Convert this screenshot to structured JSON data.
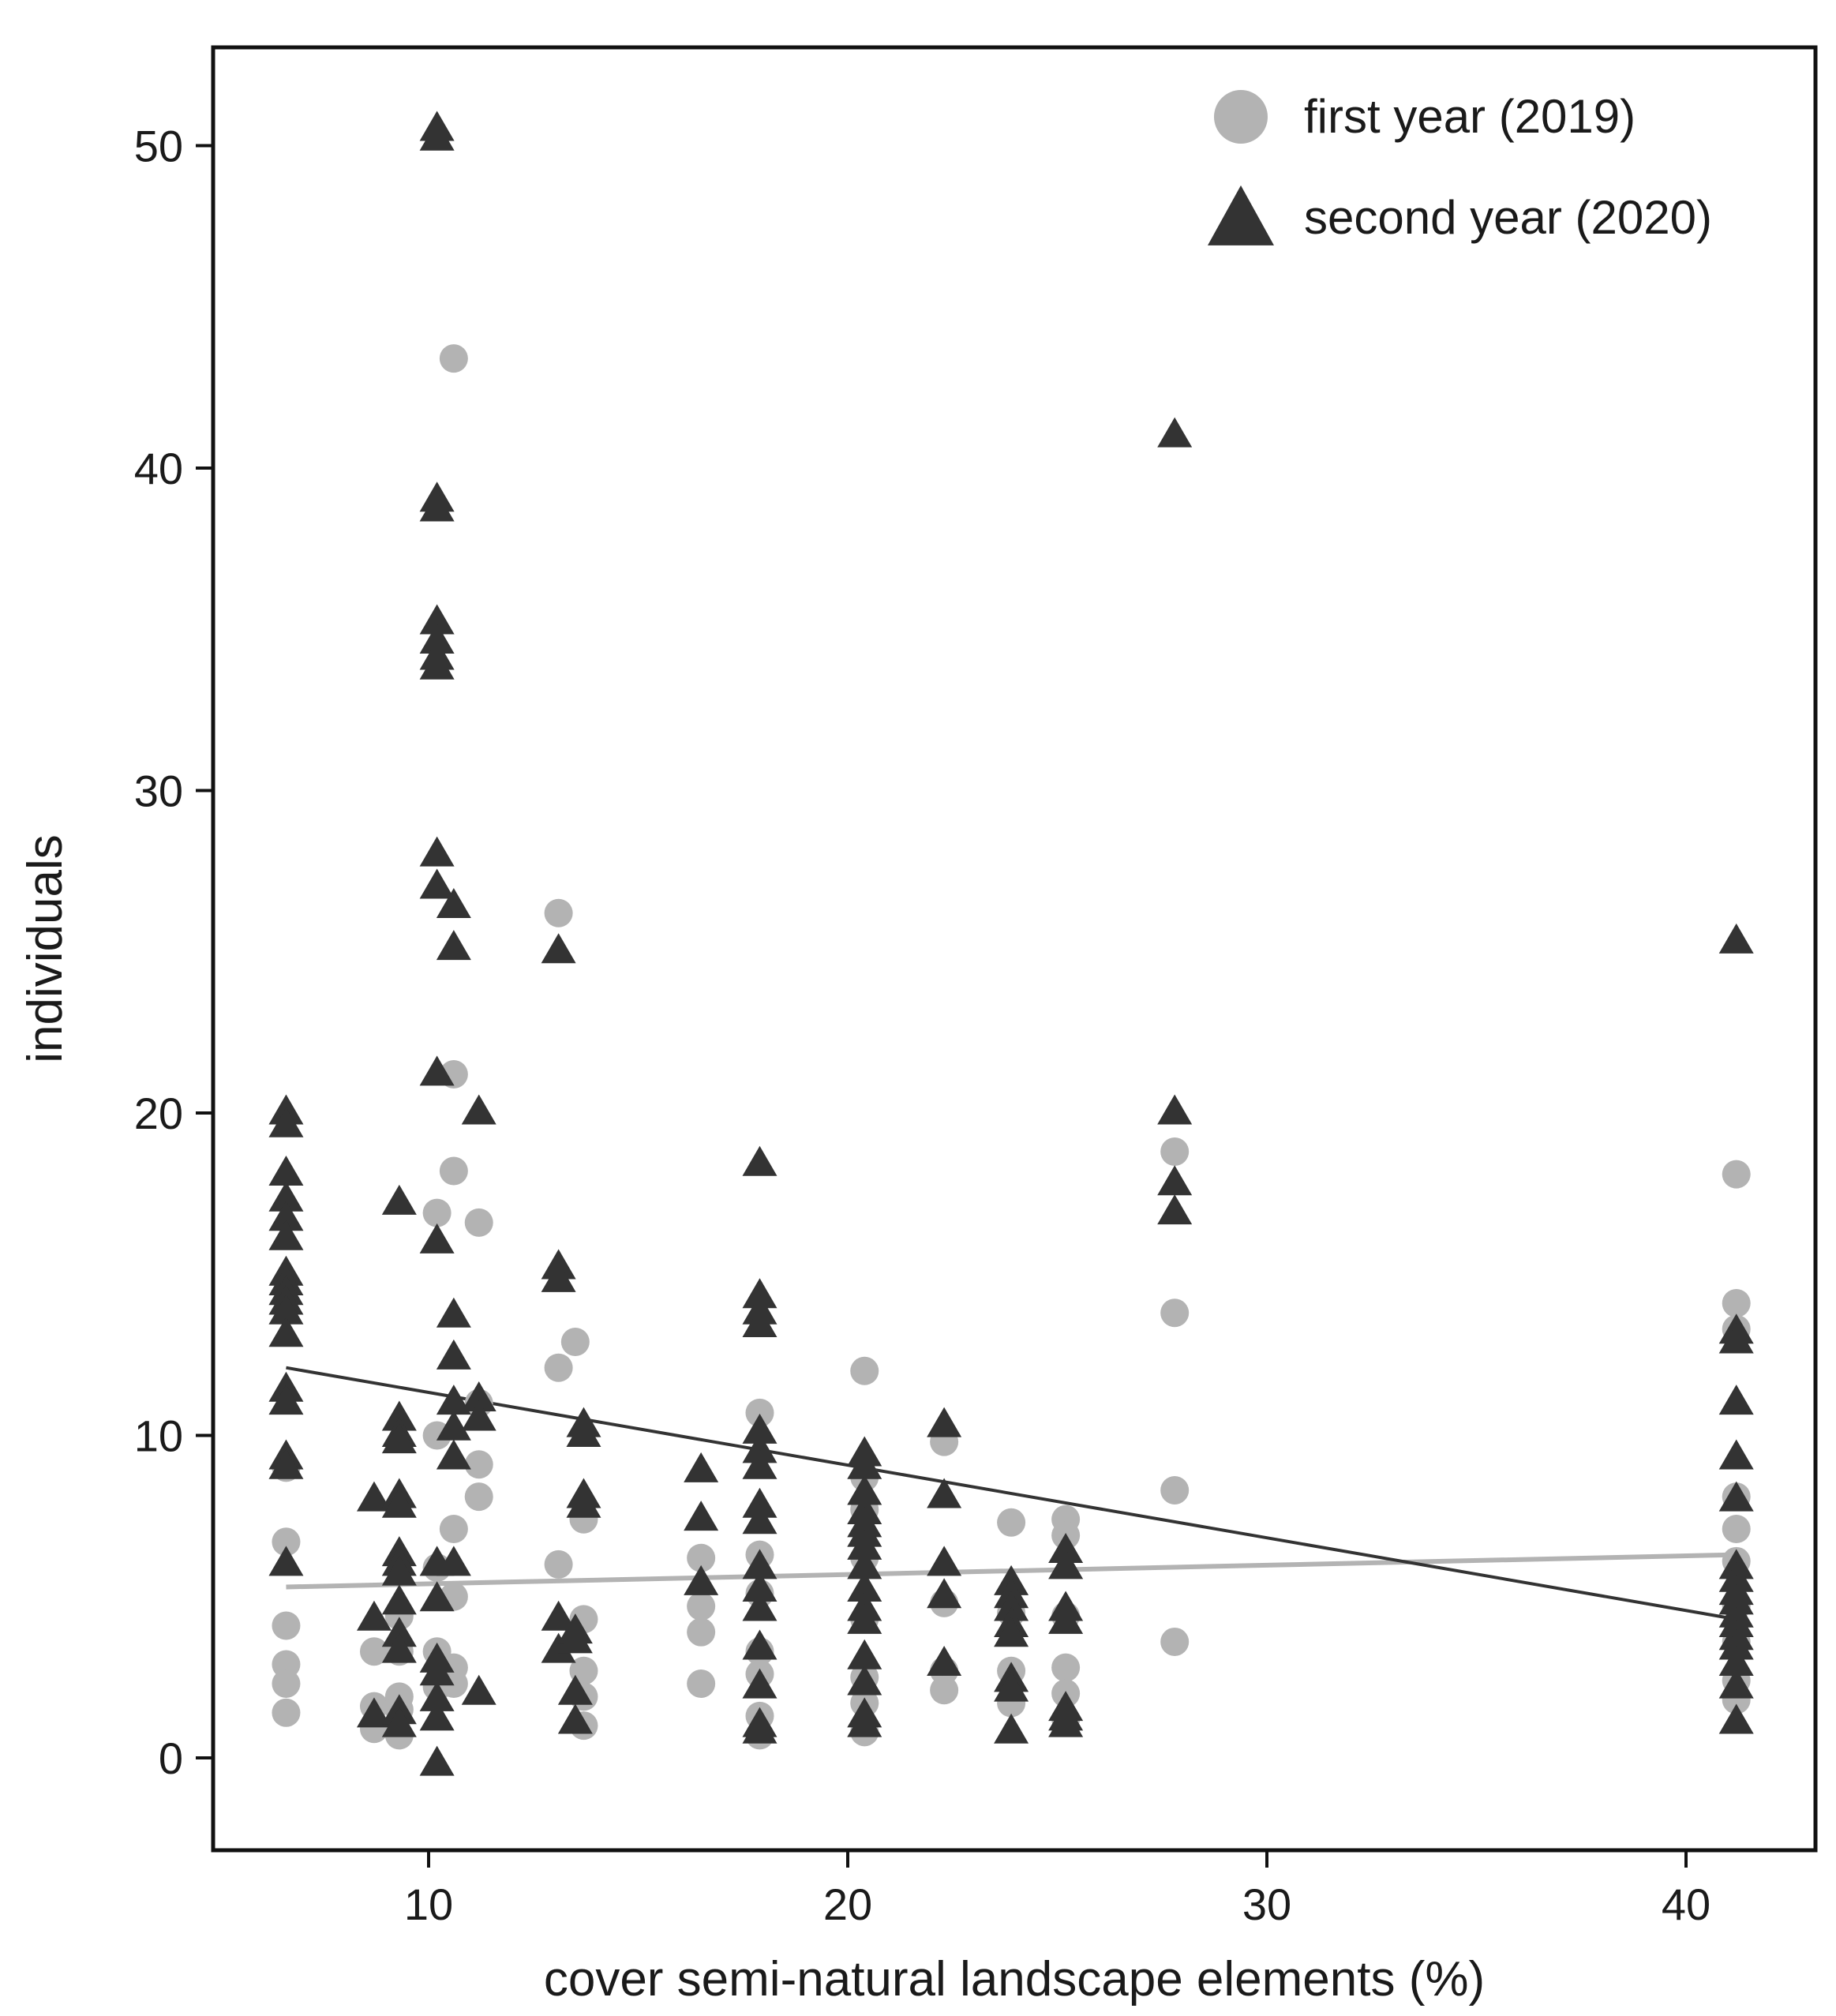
{
  "chart_data": {
    "type": "scatter",
    "title": "",
    "xlabel": "cover semi-natural landscape elements (%)",
    "ylabel": "individuals",
    "xlim": [
      5,
      43.1
    ],
    "ylim": [
      -2.8,
      53
    ],
    "xticks": [
      10,
      20,
      30,
      40
    ],
    "yticks": [
      0,
      10,
      20,
      30,
      40,
      50
    ],
    "grid": false,
    "legend_position": "top-right",
    "series": [
      {
        "name": "first year (2019)",
        "marker": "circle",
        "color": "#b3b3b3",
        "trend_line": {
          "x": [
            6.6,
            41.2
          ],
          "y": [
            5.3,
            6.3
          ]
        },
        "points": [
          [
            6.6,
            9
          ],
          [
            6.6,
            6.7
          ],
          [
            6.6,
            4.1
          ],
          [
            6.6,
            2.9
          ],
          [
            6.6,
            2.3
          ],
          [
            6.6,
            1.4
          ],
          [
            8.7,
            3.3
          ],
          [
            8.7,
            1.6
          ],
          [
            8.7,
            0.9
          ],
          [
            9.3,
            4.4
          ],
          [
            9.3,
            3.3
          ],
          [
            9.3,
            1.9
          ],
          [
            9.3,
            1.5
          ],
          [
            9.3,
            0.7
          ],
          [
            10.2,
            16.9
          ],
          [
            10.2,
            10
          ],
          [
            10.2,
            5.9
          ],
          [
            10.2,
            3.3
          ],
          [
            10.2,
            2.2
          ],
          [
            10.6,
            43.4
          ],
          [
            10.6,
            21.2
          ],
          [
            10.6,
            18.2
          ],
          [
            10.6,
            7.1
          ],
          [
            10.6,
            5
          ],
          [
            10.6,
            2.8
          ],
          [
            10.6,
            2.3
          ],
          [
            11.2,
            16.6
          ],
          [
            11.2,
            11
          ],
          [
            11.2,
            9.1
          ],
          [
            11.2,
            8.1
          ],
          [
            13.1,
            26.2
          ],
          [
            13.1,
            12.1
          ],
          [
            13.1,
            6
          ],
          [
            13.5,
            12.9
          ],
          [
            13.7,
            7.4
          ],
          [
            13.7,
            4.3
          ],
          [
            13.7,
            2.7
          ],
          [
            13.7,
            1.9
          ],
          [
            13.7,
            1
          ],
          [
            16.5,
            6.2
          ],
          [
            16.5,
            4.7
          ],
          [
            16.5,
            3.9
          ],
          [
            16.5,
            2.3
          ],
          [
            17.9,
            10.7
          ],
          [
            17.9,
            6.3
          ],
          [
            17.9,
            5.1
          ],
          [
            17.9,
            3.3
          ],
          [
            17.9,
            2.6
          ],
          [
            17.9,
            1.3
          ],
          [
            17.9,
            0.7
          ],
          [
            20.4,
            12
          ],
          [
            20.4,
            8.7
          ],
          [
            20.4,
            7.7
          ],
          [
            20.4,
            6.2
          ],
          [
            20.4,
            4.3
          ],
          [
            20.4,
            2.5
          ],
          [
            20.4,
            1.7
          ],
          [
            20.4,
            0.8
          ],
          [
            22.3,
            9.8
          ],
          [
            22.3,
            4.8
          ],
          [
            22.3,
            2.7
          ],
          [
            22.3,
            2.1
          ],
          [
            23.9,
            7.3
          ],
          [
            23.9,
            4.5
          ],
          [
            23.9,
            2.7
          ],
          [
            23.9,
            1.7
          ],
          [
            25.2,
            7.4
          ],
          [
            25.2,
            6.9
          ],
          [
            25.2,
            4.4
          ],
          [
            25.2,
            2.8
          ],
          [
            25.2,
            2
          ],
          [
            25.2,
            1.2
          ],
          [
            27.8,
            18.8
          ],
          [
            27.8,
            13.8
          ],
          [
            27.8,
            8.3
          ],
          [
            27.8,
            3.6
          ],
          [
            41.2,
            18.1
          ],
          [
            41.2,
            14.1
          ],
          [
            41.2,
            13.3
          ],
          [
            41.2,
            8.1
          ],
          [
            41.2,
            7.1
          ],
          [
            41.2,
            6.1
          ],
          [
            41.2,
            4.7
          ],
          [
            41.2,
            3.6
          ],
          [
            41.2,
            2.4
          ],
          [
            41.2,
            1.8
          ]
        ]
      },
      {
        "name": "second year (2020)",
        "marker": "triangle",
        "color": "#333333",
        "trend_line": {
          "x": [
            6.6,
            41.2
          ],
          "y": [
            12.1,
            4.3
          ]
        },
        "points": [
          [
            6.6,
            20
          ],
          [
            6.6,
            19.6
          ],
          [
            6.6,
            18.1
          ],
          [
            6.6,
            17.3
          ],
          [
            6.6,
            16.7
          ],
          [
            6.6,
            16.1
          ],
          [
            6.6,
            15
          ],
          [
            6.6,
            14.7
          ],
          [
            6.6,
            14.4
          ],
          [
            6.6,
            14.1
          ],
          [
            6.6,
            13.8
          ],
          [
            6.6,
            13.1
          ],
          [
            6.6,
            11.4
          ],
          [
            6.6,
            11
          ],
          [
            6.6,
            9.3
          ],
          [
            6.6,
            9
          ],
          [
            6.6,
            6
          ],
          [
            8.7,
            8
          ],
          [
            8.7,
            4.3
          ],
          [
            8.7,
            1.3
          ],
          [
            9.3,
            17.2
          ],
          [
            9.3,
            10.5
          ],
          [
            9.3,
            10
          ],
          [
            9.3,
            9.8
          ],
          [
            9.3,
            8.1
          ],
          [
            9.3,
            7.8
          ],
          [
            9.3,
            6.3
          ],
          [
            9.3,
            6
          ],
          [
            9.3,
            5.7
          ],
          [
            9.3,
            4.8
          ],
          [
            9.3,
            3.8
          ],
          [
            9.3,
            3.3
          ],
          [
            9.3,
            1.4
          ],
          [
            9.3,
            1
          ],
          [
            10.2,
            50.5
          ],
          [
            10.2,
            50.2
          ],
          [
            10.2,
            39
          ],
          [
            10.2,
            38.7
          ],
          [
            10.2,
            35.2
          ],
          [
            10.2,
            34.6
          ],
          [
            10.2,
            34.1
          ],
          [
            10.2,
            33.8
          ],
          [
            10.2,
            28
          ],
          [
            10.2,
            27
          ],
          [
            10.2,
            21.2
          ],
          [
            10.2,
            16
          ],
          [
            10.2,
            6
          ],
          [
            10.2,
            4.9
          ],
          [
            10.2,
            3
          ],
          [
            10.2,
            2.6
          ],
          [
            10.2,
            1.8
          ],
          [
            10.2,
            1.2
          ],
          [
            10.2,
            -0.2
          ],
          [
            10.6,
            26.4
          ],
          [
            10.6,
            25.1
          ],
          [
            10.6,
            13.7
          ],
          [
            10.6,
            12.4
          ],
          [
            10.6,
            11
          ],
          [
            10.6,
            10.2
          ],
          [
            10.6,
            9.3
          ],
          [
            10.6,
            6
          ],
          [
            11.2,
            20
          ],
          [
            11.2,
            11.1
          ],
          [
            11.2,
            10.5
          ],
          [
            11.2,
            2
          ],
          [
            13.1,
            25
          ],
          [
            13.1,
            15.2
          ],
          [
            13.1,
            14.8
          ],
          [
            13.1,
            4.3
          ],
          [
            13.1,
            3.3
          ],
          [
            13.5,
            3.9
          ],
          [
            13.5,
            3.6
          ],
          [
            13.5,
            2
          ],
          [
            13.5,
            1.1
          ],
          [
            13.7,
            10.3
          ],
          [
            13.7,
            10
          ],
          [
            13.7,
            8.1
          ],
          [
            13.7,
            7.8
          ],
          [
            16.5,
            8.9
          ],
          [
            16.5,
            7.4
          ],
          [
            16.5,
            5.4
          ],
          [
            17.9,
            18.4
          ],
          [
            17.9,
            14.3
          ],
          [
            17.9,
            13.8
          ],
          [
            17.9,
            13.4
          ],
          [
            17.9,
            10.1
          ],
          [
            17.9,
            9.5
          ],
          [
            17.9,
            9
          ],
          [
            17.9,
            7.8
          ],
          [
            17.9,
            7.3
          ],
          [
            17.9,
            5.9
          ],
          [
            17.9,
            5.2
          ],
          [
            17.9,
            4.6
          ],
          [
            17.9,
            3.4
          ],
          [
            17.9,
            2.2
          ],
          [
            17.9,
            1
          ],
          [
            17.9,
            0.8
          ],
          [
            20.4,
            9.4
          ],
          [
            20.4,
            9
          ],
          [
            20.4,
            8.2
          ],
          [
            20.4,
            7.6
          ],
          [
            20.4,
            7.2
          ],
          [
            20.4,
            6.9
          ],
          [
            20.4,
            6.5
          ],
          [
            20.4,
            5.9
          ],
          [
            20.4,
            5.2
          ],
          [
            20.4,
            4.6
          ],
          [
            20.4,
            4.2
          ],
          [
            20.4,
            3.1
          ],
          [
            20.4,
            2.3
          ],
          [
            20.4,
            1.3
          ],
          [
            20.4,
            1
          ],
          [
            22.3,
            10.3
          ],
          [
            22.3,
            8.1
          ],
          [
            22.3,
            6
          ],
          [
            22.3,
            5
          ],
          [
            22.3,
            2.9
          ],
          [
            23.9,
            5.4
          ],
          [
            23.9,
            5
          ],
          [
            23.9,
            4.6
          ],
          [
            23.9,
            4.1
          ],
          [
            23.9,
            3.8
          ],
          [
            23.9,
            2.4
          ],
          [
            23.9,
            2.1
          ],
          [
            23.9,
            0.8
          ],
          [
            25.2,
            6.4
          ],
          [
            25.2,
            5.9
          ],
          [
            25.2,
            4.6
          ],
          [
            25.2,
            4.2
          ],
          [
            25.2,
            1.5
          ],
          [
            25.2,
            1.2
          ],
          [
            25.2,
            1
          ],
          [
            27.8,
            41
          ],
          [
            27.8,
            20
          ],
          [
            27.8,
            17.8
          ],
          [
            27.8,
            16.9
          ],
          [
            41.2,
            25.3
          ],
          [
            41.2,
            13.2
          ],
          [
            41.2,
            12.9
          ],
          [
            41.2,
            11
          ],
          [
            41.2,
            9.3
          ],
          [
            41.2,
            8
          ],
          [
            41.2,
            5.9
          ],
          [
            41.2,
            5.5
          ],
          [
            41.2,
            5.1
          ],
          [
            41.2,
            4.8
          ],
          [
            41.2,
            4.4
          ],
          [
            41.2,
            4.1
          ],
          [
            41.2,
            3.7
          ],
          [
            41.2,
            3.4
          ],
          [
            41.2,
            2.9
          ],
          [
            41.2,
            2.2
          ],
          [
            41.2,
            1.1
          ]
        ]
      }
    ]
  }
}
